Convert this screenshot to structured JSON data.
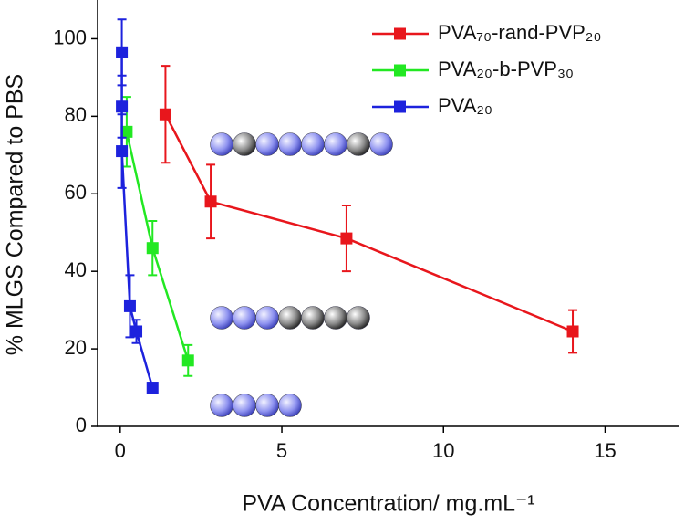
{
  "chart_data": {
    "type": "line",
    "xlabel": "PVA Concentration/ mg.mL⁻¹",
    "ylabel": "% MLGS Compared to PBS",
    "xlim": [
      -0.7,
      17.3
    ],
    "xticks": [
      0,
      5,
      10,
      15
    ],
    "ylim": [
      0,
      110
    ],
    "yticks": [
      0,
      20,
      40,
      60,
      80,
      100
    ],
    "legend": "upper right",
    "series": [
      {
        "name": "PVA₇₀-rand-PVP₂₀",
        "color": "#e8161c",
        "x": [
          1.4,
          2.8,
          7,
          14
        ],
        "values": [
          80.5,
          58,
          48.5,
          24.5
        ],
        "errors": [
          12.5,
          9.5,
          8.5,
          5.5
        ]
      },
      {
        "name": "PVA₂₀-b-PVP₃₀",
        "color": "#22e822",
        "x": [
          0.2,
          1,
          2.1
        ],
        "values": [
          76,
          46,
          17
        ],
        "errors": [
          9,
          7,
          4
        ]
      },
      {
        "name": "PVA₂₀",
        "color": "#1d22dd",
        "x": [
          0.05,
          0.05,
          0.05,
          0.3,
          0.5,
          1
        ],
        "values": [
          96.5,
          82.5,
          71,
          31,
          24.5,
          10
        ],
        "errors": [
          8.5,
          8,
          9.5,
          8,
          3,
          1
        ]
      }
    ]
  }
}
